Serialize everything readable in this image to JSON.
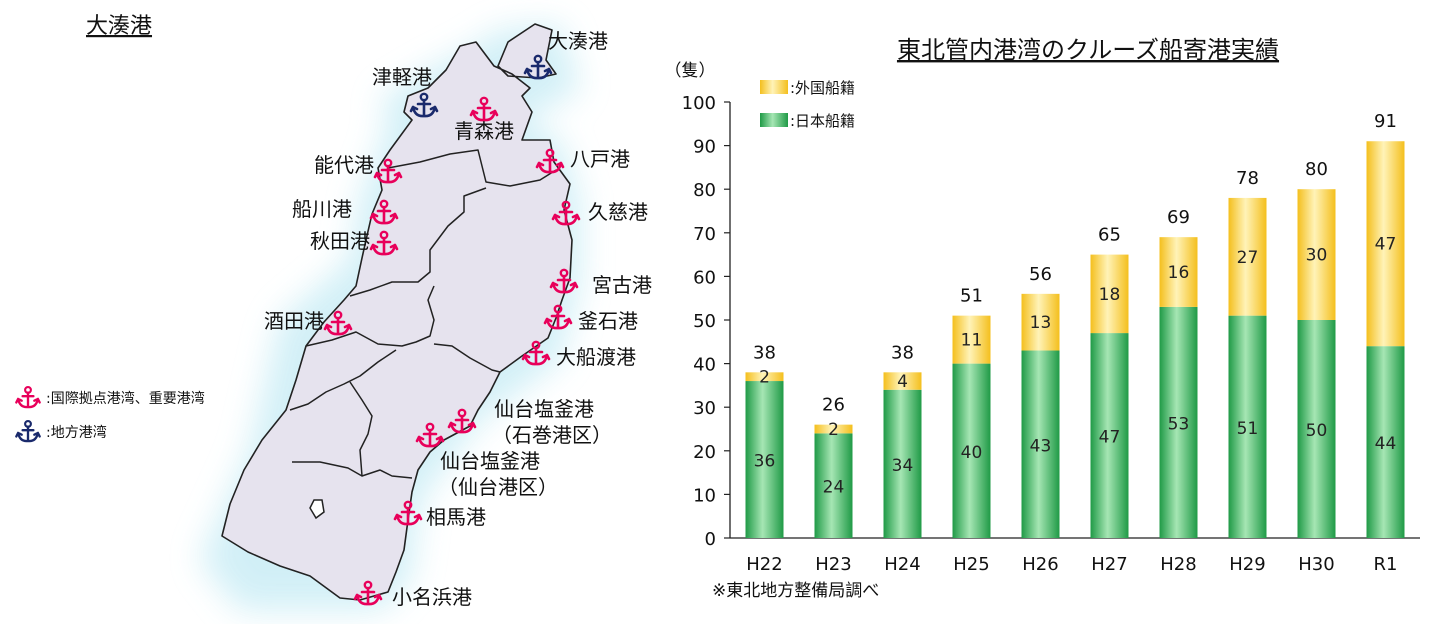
{
  "map": {
    "title": "大湊港",
    "ports": [
      {
        "label": "大湊港",
        "kind": "local"
      },
      {
        "label": "津軽港",
        "kind": "local"
      },
      {
        "label": "青森港",
        "kind": "major"
      },
      {
        "label": "八戸港",
        "kind": "major"
      },
      {
        "label": "能代港",
        "kind": "major"
      },
      {
        "label": "久慈港",
        "kind": "major"
      },
      {
        "label": "船川港",
        "kind": "major"
      },
      {
        "label": "秋田港",
        "kind": "major"
      },
      {
        "label": "宮古港",
        "kind": "major"
      },
      {
        "label": "釜石港",
        "kind": "major"
      },
      {
        "label": "酒田港",
        "kind": "major"
      },
      {
        "label": "大船渡港",
        "kind": "major"
      },
      {
        "label": "仙台塩釜港",
        "kind": "major"
      },
      {
        "label": "（石巻港区）",
        "kind": "label"
      },
      {
        "label": "仙台塩釜港",
        "kind": "major"
      },
      {
        "label": "（仙台港区）",
        "kind": "label"
      },
      {
        "label": "相馬港",
        "kind": "major"
      },
      {
        "label": "小名浜港",
        "kind": "major"
      }
    ],
    "legend": [
      {
        "label": "国際拠点港湾、重要港湾",
        "color": "#e8005a",
        "icon": "anchor-icon"
      },
      {
        "label": "地方港湾",
        "color": "#1a2a6c",
        "icon": "anchor-icon"
      }
    ]
  },
  "colors": {
    "major_anchor": "#e8005a",
    "local_anchor": "#1a2a6c",
    "land": "#e6e3ee",
    "sea_glow": "#cdeef6",
    "japan_bar": "#3cb55e",
    "foreign_bar": "#f6c93a"
  },
  "chart_data": {
    "type": "bar",
    "stacked": true,
    "title": "東北管内港湾のクルーズ船寄港実績",
    "ylabel": "（隻）",
    "source": "※東北地方整備局調べ",
    "categories": [
      "H22",
      "H23",
      "H24",
      "H25",
      "H26",
      "H27",
      "H28",
      "H29",
      "H30",
      "R1"
    ],
    "ylim": [
      0,
      100
    ],
    "yticks": [
      0,
      10,
      20,
      30,
      40,
      50,
      60,
      70,
      80,
      90,
      100
    ],
    "series": [
      {
        "name": "日本船籍",
        "values": [
          36,
          24,
          34,
          40,
          43,
          47,
          53,
          51,
          50,
          44
        ]
      },
      {
        "name": "外国船籍",
        "values": [
          2,
          2,
          4,
          11,
          13,
          18,
          16,
          27,
          30,
          47
        ]
      }
    ],
    "totals": [
      38,
      26,
      38,
      51,
      56,
      65,
      69,
      78,
      80,
      91
    ],
    "legend_labels": [
      ":外国船籍",
      ":日本船籍"
    ],
    "legend_position": "top-left"
  }
}
